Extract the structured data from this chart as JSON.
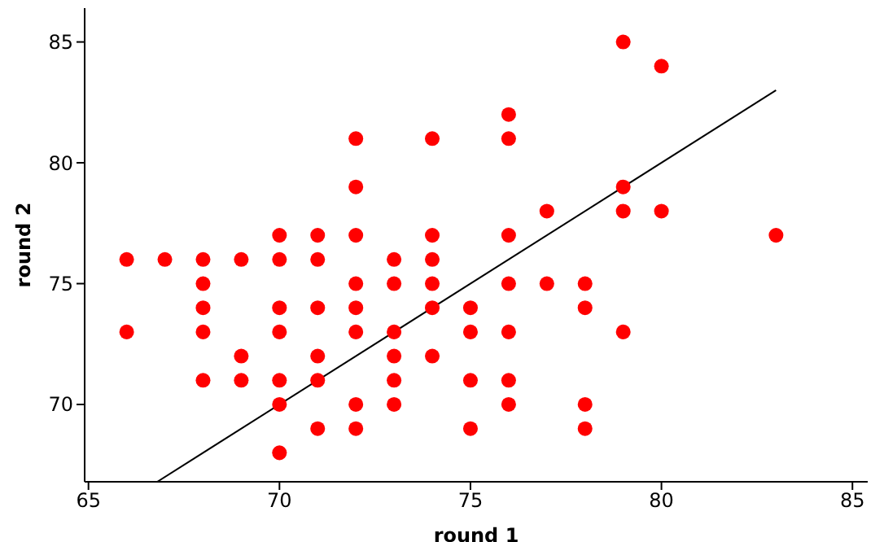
{
  "chart_data": {
    "type": "scatter",
    "xlabel": "round 1",
    "ylabel": "round 2",
    "xlim": [
      64.9,
      85.4
    ],
    "ylim": [
      66.8,
      86.4
    ],
    "xticks": [
      65,
      70,
      75,
      80,
      85
    ],
    "yticks": [
      70,
      75,
      80,
      85
    ],
    "grid": false,
    "series": [
      {
        "color": "#ff0000",
        "x": [
          66,
          66,
          67,
          68,
          68,
          68,
          68,
          68,
          69,
          69,
          69,
          70,
          70,
          70,
          70,
          70,
          70,
          70,
          71,
          71,
          71,
          71,
          71,
          71,
          72,
          72,
          72,
          72,
          72,
          72,
          72,
          72,
          73,
          73,
          73,
          73,
          73,
          73,
          74,
          74,
          74,
          74,
          74,
          74,
          75,
          75,
          75,
          75,
          76,
          76,
          76,
          76,
          76,
          76,
          76,
          77,
          77,
          78,
          78,
          78,
          78,
          79,
          79,
          79,
          79,
          80,
          80,
          83
        ],
        "values": [
          76,
          73,
          76,
          76,
          75,
          74,
          73,
          71,
          76,
          72,
          71,
          77,
          76,
          74,
          73,
          71,
          70,
          68,
          77,
          76,
          74,
          72,
          71,
          69,
          81,
          79,
          77,
          75,
          74,
          73,
          70,
          69,
          76,
          75,
          73,
          72,
          71,
          70,
          81,
          77,
          76,
          75,
          74,
          72,
          74,
          73,
          71,
          69,
          82,
          81,
          77,
          75,
          73,
          71,
          70,
          78,
          75,
          75,
          74,
          70,
          69,
          85,
          79,
          78,
          73,
          84,
          78,
          77
        ]
      },
      {
        "type": "line",
        "color": "#000000",
        "line_style": "solid",
        "marker": "none",
        "x": [
          66.8,
          83
        ],
        "values": [
          66.8,
          83
        ]
      }
    ]
  }
}
